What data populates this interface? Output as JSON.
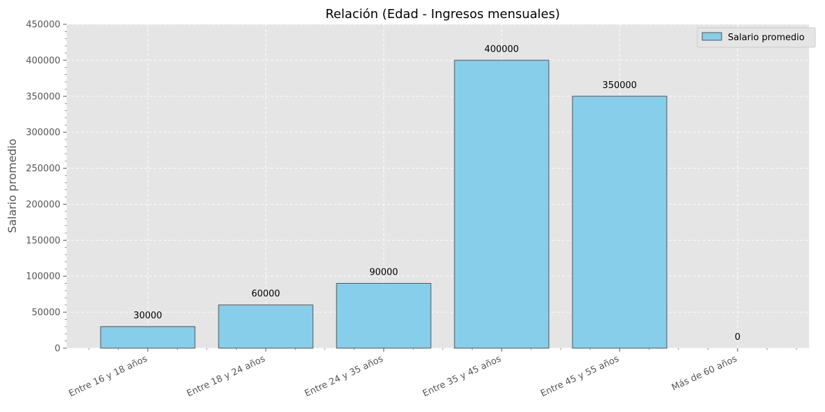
{
  "chart_data": {
    "type": "bar",
    "title": "Relación (Edad - Ingresos mensuales)",
    "xlabel": "",
    "ylabel": "Salario promedio",
    "ylim": [
      0,
      450000
    ],
    "yticks": [
      "0",
      "50000",
      "100000",
      "150000",
      "200000",
      "250000",
      "300000",
      "350000",
      "400000",
      "450000"
    ],
    "categories": [
      "Entre 16 y 18 años",
      "Entre 18 y 24 años",
      "Entre 24 y 35 años",
      "Entre 35 y 45 años",
      "Entre 45 y 55 años",
      "Más de 60 años"
    ],
    "series": [
      {
        "name": "Salario promedio",
        "values": [
          30000,
          60000,
          90000,
          400000,
          350000,
          0
        ]
      }
    ],
    "data_labels": [
      "30000",
      "60000",
      "90000",
      "400000",
      "350000",
      "0"
    ],
    "legend": {
      "position": "top-right",
      "entries": [
        "Salario promedio"
      ]
    },
    "grid": true,
    "colors": {
      "bar": "#87ceeb",
      "bar_edge": "#333333",
      "plot_bg": "#e5e5e5",
      "grid": "#ffffff"
    }
  }
}
